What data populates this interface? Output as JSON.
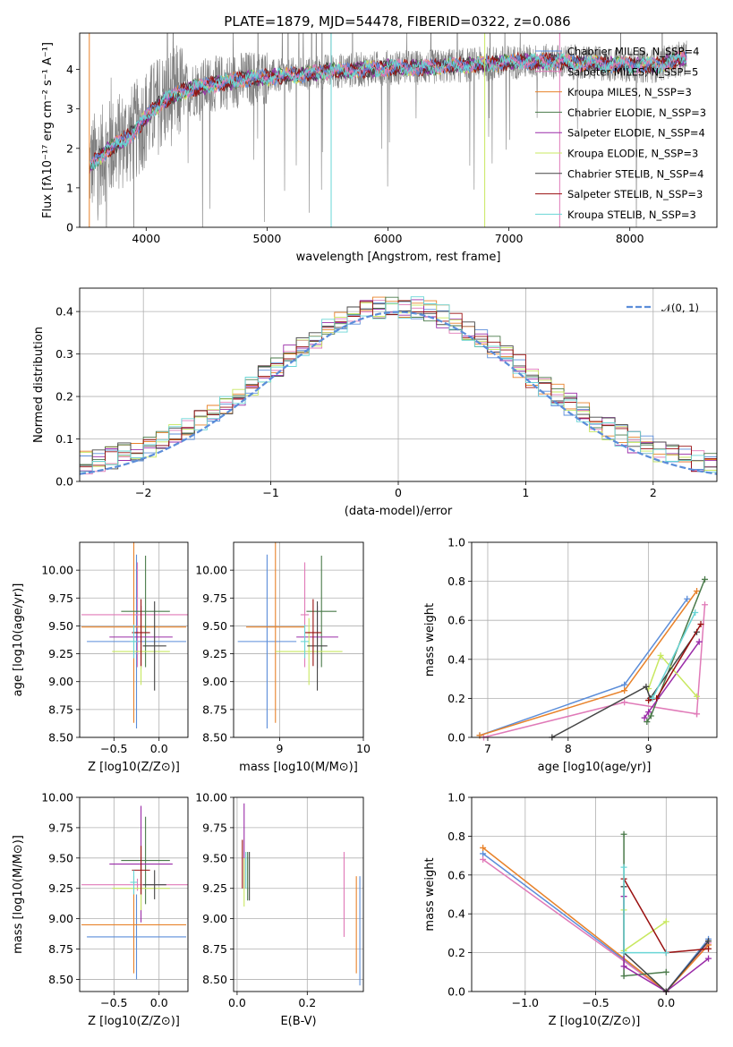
{
  "figure": {
    "title": "PLATE=1879, MJD=54478, FIBERID=0322, z=0.086"
  },
  "colors": {
    "data_gray": "#808080",
    "chabrier_miles": "#5b8dd9",
    "salpeter_miles": "#e07ab8",
    "kroupa_miles": "#e8822a",
    "chabrier_elodie": "#4a7a4a",
    "salpeter_elodie": "#9a2ca8",
    "kroupa_elodie": "#c8e860",
    "chabrier_stelib": "#444444",
    "salpeter_stelib": "#9a1010",
    "kroupa_stelib": "#6ad6d6",
    "normal_curve": "#5b8dd9",
    "grid": "#b0b0b0"
  },
  "chart_data": [
    {
      "type": "line",
      "panel": "spectrum",
      "title": "PLATE=1879, MJD=54478, FIBERID=0322, z=0.086",
      "xlabel": "wavelength [Angstrom, rest frame]",
      "ylabel": "Flux [fλ10⁻¹⁷ erg cm⁻² s⁻¹ A⁻¹]",
      "xlim": [
        3450,
        8720
      ],
      "ylim": [
        0,
        4.92
      ],
      "xticks": [
        4000,
        5000,
        6000,
        7000,
        8000
      ],
      "yticks": [
        0,
        1,
        2,
        3,
        4
      ],
      "grid": false,
      "legend_position": "top-right",
      "legend": [
        "Chabrier MILES, N_SSP=4",
        "Salpeter MILES, N_SSP=5",
        "Kroupa MILES, N_SSP=3",
        "Chabrier ELODIE, N_SSP=3",
        "Salpeter ELODIE, N_SSP=4",
        "Kroupa ELODIE, N_SSP=3",
        "Chabrier STELIB, N_SSP=4",
        "Salpeter STELIB, N_SSP=3",
        "Kroupa STELIB, N_SSP=3"
      ],
      "model_continuum": {
        "x": [
          3530,
          3600,
          3700,
          3800,
          3900,
          4000,
          4100,
          4200,
          4300,
          4500,
          4800,
          5000,
          5200,
          5500,
          5800,
          6000,
          6300,
          6600,
          6900,
          7100,
          7400,
          7700,
          8000,
          8200,
          8470
        ],
        "y": [
          1.55,
          1.75,
          2.0,
          2.2,
          2.4,
          2.8,
          3.1,
          3.3,
          3.45,
          3.6,
          3.75,
          3.8,
          3.85,
          3.95,
          4.0,
          4.05,
          4.05,
          4.1,
          4.15,
          4.2,
          4.2,
          4.15,
          4.1,
          4.1,
          4.3
        ]
      }
    },
    {
      "type": "line",
      "panel": "residuals",
      "xlabel": "(data-model)/error",
      "ylabel": "Normed distribution",
      "xlim": [
        -2.5,
        2.5
      ],
      "ylim": [
        0,
        0.455
      ],
      "xticks": [
        -2,
        -1,
        0,
        1,
        2
      ],
      "yticks": [
        0.0,
        0.1,
        0.2,
        0.3,
        0.4
      ],
      "grid": true,
      "legend_position": "top-right",
      "legend": [
        "𝒩(0, 1)"
      ],
      "normal_curve": {
        "mean": 0,
        "sigma": 1
      }
    },
    {
      "type": "scatter",
      "panel": "age_vs_Z",
      "xlabel": "Z [log10(Z/Z⊙)]",
      "ylabel": "age  [log10(age/yr)]",
      "xlim": [
        -0.88,
        0.32
      ],
      "ylim": [
        8.5,
        10.25
      ],
      "xticks": [
        -0.5,
        0.0
      ],
      "yticks": [
        8.5,
        8.75,
        9.0,
        9.25,
        9.5,
        9.75,
        10.0
      ],
      "grid": true,
      "points": [
        {
          "model": "chabrier_miles",
          "x": -0.25,
          "xerr": 0.55,
          "y": 9.36,
          "yerr": 0.78
        },
        {
          "model": "salpeter_miles",
          "x": -0.24,
          "xerr": 0.62,
          "y": 9.6,
          "yerr": 0.47
        },
        {
          "model": "kroupa_miles",
          "x": -0.28,
          "xerr": 0.58,
          "y": 9.49,
          "yerr": 0.86
        },
        {
          "model": "chabrier_elodie",
          "x": -0.15,
          "xerr": 0.27,
          "y": 9.63,
          "yerr": 0.5
        },
        {
          "model": "salpeter_elodie",
          "x": -0.2,
          "xerr": 0.35,
          "y": 9.4,
          "yerr": 0.28
        },
        {
          "model": "kroupa_elodie",
          "x": -0.2,
          "xerr": 0.32,
          "y": 9.27,
          "yerr": 0.3
        },
        {
          "model": "chabrier_stelib",
          "x": -0.05,
          "xerr": 0.13,
          "y": 9.32,
          "yerr": 0.4
        },
        {
          "model": "salpeter_stelib",
          "x": -0.2,
          "xerr": 0.1,
          "y": 9.44,
          "yerr": 0.3
        },
        {
          "model": "kroupa_stelib",
          "x": -0.28,
          "xerr": 0.04,
          "y": 9.36,
          "yerr": 0.15
        }
      ]
    },
    {
      "type": "scatter",
      "panel": "age_vs_mass",
      "xlabel": "mass [log10(M/M⊙)]",
      "ylabel": "",
      "xlim": [
        8.45,
        10.0
      ],
      "ylim": [
        8.5,
        10.25
      ],
      "xticks": [
        9,
        10
      ],
      "yticks": [
        8.5,
        8.75,
        9.0,
        9.25,
        9.5,
        9.75,
        10.0
      ],
      "grid": true,
      "points": [
        {
          "model": "chabrier_miles",
          "x": 8.85,
          "xerr": 0.35,
          "y": 9.36,
          "yerr": 0.78
        },
        {
          "model": "salpeter_miles",
          "x": 9.3,
          "xerr": 0.05,
          "y": 9.6,
          "yerr": 0.47
        },
        {
          "model": "kroupa_miles",
          "x": 8.95,
          "xerr": 0.35,
          "y": 9.49,
          "yerr": 0.86
        },
        {
          "model": "chabrier_elodie",
          "x": 9.5,
          "xerr": 0.18,
          "y": 9.63,
          "yerr": 0.5
        },
        {
          "model": "salpeter_elodie",
          "x": 9.45,
          "xerr": 0.25,
          "y": 9.4,
          "yerr": 0.28
        },
        {
          "model": "kroupa_elodie",
          "x": 9.35,
          "xerr": 0.4,
          "y": 9.27,
          "yerr": 0.3
        },
        {
          "model": "chabrier_stelib",
          "x": 9.45,
          "xerr": 0.12,
          "y": 9.32,
          "yerr": 0.4
        },
        {
          "model": "salpeter_stelib",
          "x": 9.4,
          "xerr": 0.1,
          "y": 9.44,
          "yerr": 0.3
        },
        {
          "model": "kroupa_stelib",
          "x": 9.3,
          "xerr": 0.05,
          "y": 9.36,
          "yerr": 0.15
        }
      ]
    },
    {
      "type": "line",
      "panel": "weight_vs_age",
      "xlabel": "age  [log10(age/yr)]",
      "ylabel": "mass weight",
      "xlim": [
        6.8,
        9.85
      ],
      "ylim": [
        0,
        1.0
      ],
      "xticks": [
        7,
        8,
        9
      ],
      "yticks": [
        0.0,
        0.2,
        0.4,
        0.6,
        0.8,
        1.0
      ],
      "grid": true,
      "series": [
        {
          "model": "chabrier_miles",
          "x": [
            6.9,
            8.7,
            9.48
          ],
          "y": [
            0.01,
            0.27,
            0.71
          ]
        },
        {
          "model": "salpeter_miles",
          "x": [
            6.95,
            8.7,
            9.6,
            9.7,
            9.6
          ],
          "y": [
            0.0,
            0.18,
            0.12,
            0.68,
            0.12
          ]
        },
        {
          "model": "kroupa_miles",
          "x": [
            6.9,
            8.7,
            9.6
          ],
          "y": [
            0.01,
            0.24,
            0.75
          ]
        },
        {
          "model": "chabrier_elodie",
          "x": [
            8.98,
            9.03,
            9.7
          ],
          "y": [
            0.08,
            0.11,
            0.81
          ]
        },
        {
          "model": "salpeter_elodie",
          "x": [
            8.95,
            9.0,
            9.63
          ],
          "y": [
            0.1,
            0.13,
            0.49
          ]
        },
        {
          "model": "kroupa_elodie",
          "x": [
            9.0,
            9.15,
            9.6
          ],
          "y": [
            0.25,
            0.42,
            0.21
          ]
        },
        {
          "model": "chabrier_stelib",
          "x": [
            7.8,
            8.97,
            9.02,
            9.6
          ],
          "y": [
            0.0,
            0.26,
            0.2,
            0.54
          ]
        },
        {
          "model": "salpeter_stelib",
          "x": [
            9.0,
            9.1,
            9.65
          ],
          "y": [
            0.19,
            0.2,
            0.58
          ]
        },
        {
          "model": "kroupa_stelib",
          "x": [
            9.05,
            9.58
          ],
          "y": [
            0.2,
            0.64
          ]
        }
      ]
    },
    {
      "type": "scatter",
      "panel": "mass_vs_Z",
      "xlabel": "Z [log10(Z/Z⊙)]",
      "ylabel": "mass [log10(M/M⊙)]",
      "xlim": [
        -0.88,
        0.32
      ],
      "ylim": [
        8.4,
        10.0
      ],
      "xticks": [
        -0.5,
        0.0
      ],
      "yticks": [
        8.5,
        8.75,
        9.0,
        9.25,
        9.5,
        9.75,
        10.0
      ],
      "grid": true,
      "points": [
        {
          "model": "chabrier_miles",
          "x": -0.25,
          "xerr": 0.55,
          "y": 8.85,
          "yerr": 0.35
        },
        {
          "model": "salpeter_miles",
          "x": -0.24,
          "xerr": 0.62,
          "y": 9.28,
          "yerr": 0.05
        },
        {
          "model": "kroupa_miles",
          "x": -0.28,
          "xerr": 0.58,
          "y": 8.95,
          "yerr": 0.4
        },
        {
          "model": "chabrier_elodie",
          "x": -0.15,
          "xerr": 0.27,
          "y": 9.48,
          "yerr": 0.36
        },
        {
          "model": "salpeter_elodie",
          "x": -0.2,
          "xerr": 0.35,
          "y": 9.45,
          "yerr": 0.48
        },
        {
          "model": "kroupa_elodie",
          "x": -0.2,
          "xerr": 0.32,
          "y": 9.25,
          "yerr": 0.18
        },
        {
          "model": "chabrier_stelib",
          "x": -0.05,
          "xerr": 0.13,
          "y": 9.28,
          "yerr": 0.12
        },
        {
          "model": "salpeter_stelib",
          "x": -0.2,
          "xerr": 0.1,
          "y": 9.4,
          "yerr": 0.2
        },
        {
          "model": "kroupa_stelib",
          "x": -0.28,
          "xerr": 0.04,
          "y": 9.3,
          "yerr": 0.1
        }
      ]
    },
    {
      "type": "scatter",
      "panel": "mass_vs_ebv",
      "xlabel": "E(B-V)",
      "ylabel": "",
      "xlim": [
        -0.01,
        0.36
      ],
      "ylim": [
        8.4,
        10.0
      ],
      "xticks": [
        0.0,
        0.2
      ],
      "yticks": [
        8.5,
        8.75,
        9.0,
        9.25,
        9.5,
        9.75,
        10.0
      ],
      "grid": true,
      "points": [
        {
          "model": "chabrier_miles",
          "x": 0.35,
          "y": 8.9,
          "yerr": 0.45
        },
        {
          "model": "salpeter_miles",
          "x": 0.305,
          "y": 9.2,
          "yerr": 0.35
        },
        {
          "model": "kroupa_miles",
          "x": 0.34,
          "y": 8.95,
          "yerr": 0.4
        },
        {
          "model": "chabrier_elodie",
          "x": 0.03,
          "y": 9.35,
          "yerr": 0.2
        },
        {
          "model": "salpeter_elodie",
          "x": 0.02,
          "y": 9.6,
          "yerr": 0.35
        },
        {
          "model": "kroupa_elodie",
          "x": 0.02,
          "y": 9.3,
          "yerr": 0.2
        },
        {
          "model": "chabrier_stelib",
          "x": 0.035,
          "y": 9.35,
          "yerr": 0.2
        },
        {
          "model": "salpeter_stelib",
          "x": 0.015,
          "y": 9.45,
          "yerr": 0.2
        },
        {
          "model": "kroupa_stelib",
          "x": 0.025,
          "y": 9.4,
          "yerr": 0.15
        }
      ]
    },
    {
      "type": "line",
      "panel": "weight_vs_Z",
      "xlabel": "Z [log10(Z/Z⊙)]",
      "ylabel": "mass weight",
      "xlim": [
        -1.38,
        0.36
      ],
      "ylim": [
        0,
        1.0
      ],
      "xticks": [
        -1.0,
        -0.5,
        0.0
      ],
      "yticks": [
        0.0,
        0.2,
        0.4,
        0.6,
        0.8,
        1.0
      ],
      "grid": true,
      "series": [
        {
          "model": "chabrier_miles",
          "x": [
            -1.3,
            0.0,
            0.3
          ],
          "y": [
            0.71,
            0.0,
            0.27
          ]
        },
        {
          "model": "salpeter_miles",
          "x": [
            -1.3,
            0.0,
            0.3
          ],
          "y": [
            0.68,
            0.0,
            0.25
          ]
        },
        {
          "model": "kroupa_miles",
          "x": [
            -1.3,
            0.0,
            0.3
          ],
          "y": [
            0.74,
            0.0,
            0.24
          ]
        },
        {
          "model": "chabrier_elodie",
          "x": [
            -0.3,
            -0.3,
            0.0
          ],
          "y": [
            0.81,
            0.08,
            0.1
          ]
        },
        {
          "model": "salpeter_elodie",
          "x": [
            -0.3,
            -0.3,
            0.0,
            0.3
          ],
          "y": [
            0.49,
            0.13,
            0.0,
            0.17
          ]
        },
        {
          "model": "kroupa_elodie",
          "x": [
            -0.3,
            -0.3,
            0.0
          ],
          "y": [
            0.42,
            0.21,
            0.36
          ]
        },
        {
          "model": "chabrier_stelib",
          "x": [
            -0.3,
            -0.3,
            0.0,
            0.3
          ],
          "y": [
            0.54,
            0.2,
            0.0,
            0.26
          ]
        },
        {
          "model": "salpeter_stelib",
          "x": [
            -0.3,
            0.0,
            0.3
          ],
          "y": [
            0.58,
            0.2,
            0.22
          ]
        },
        {
          "model": "kroupa_stelib",
          "x": [
            -0.3,
            -0.3,
            0.0
          ],
          "y": [
            0.64,
            0.2,
            0.2
          ]
        }
      ]
    }
  ]
}
